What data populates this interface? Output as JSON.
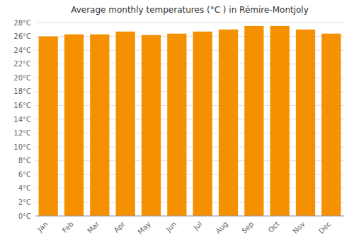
{
  "chart_data": {
    "type": "bar",
    "title": "Average monthly temperatures (°C ) in Rémire-Montjoly",
    "categories": [
      "Jan",
      "Feb",
      "Mar",
      "Apr",
      "May",
      "Jun",
      "Jul",
      "Aug",
      "Sep",
      "Oct",
      "Nov",
      "Dec"
    ],
    "values": [
      26.0,
      26.3,
      26.3,
      26.7,
      26.2,
      26.4,
      26.7,
      27.0,
      27.5,
      27.5,
      27.0,
      26.4
    ],
    "color": "#F59000",
    "ylim": [
      0,
      28
    ],
    "yticks": [
      {
        "value": 0,
        "label": "0°C"
      },
      {
        "value": 2,
        "label": "2°C"
      },
      {
        "value": 4,
        "label": "4°C"
      },
      {
        "value": 6,
        "label": "6°C"
      },
      {
        "value": 8,
        "label": "8°C"
      },
      {
        "value": 10,
        "label": "10°C"
      },
      {
        "value": 12,
        "label": "12°C"
      },
      {
        "value": 14,
        "label": "14°C"
      },
      {
        "value": 16,
        "label": "16°C"
      },
      {
        "value": 18,
        "label": "18°C"
      },
      {
        "value": 20,
        "label": "20°C"
      },
      {
        "value": 22,
        "label": "22°C"
      },
      {
        "value": 24,
        "label": "24°C"
      },
      {
        "value": 26,
        "label": "26°C"
      },
      {
        "value": 28,
        "label": "28°C"
      }
    ],
    "grid": true
  }
}
